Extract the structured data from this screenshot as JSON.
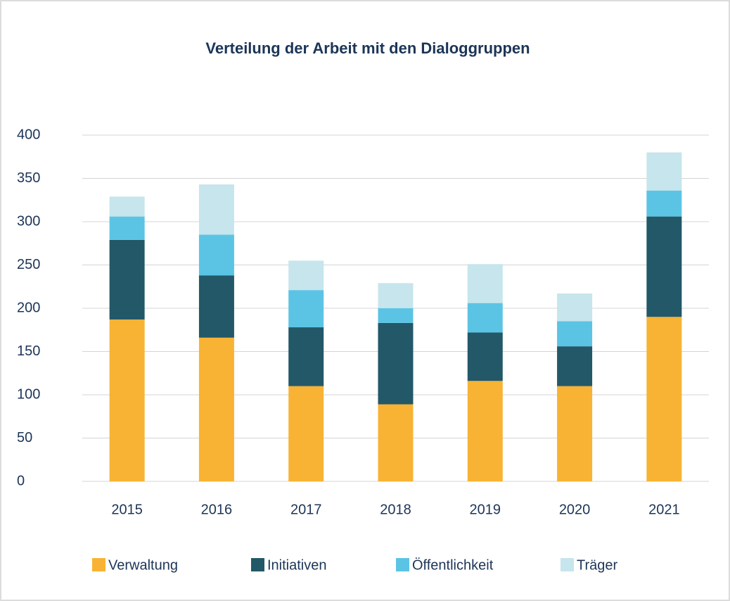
{
  "chart_data": {
    "type": "stacked_bar",
    "title": "Verteilung der Arbeit mit den Dialoggruppen",
    "categories": [
      "2015",
      "2016",
      "2017",
      "2018",
      "2019",
      "2020",
      "2021"
    ],
    "series": [
      {
        "name": "Verwaltung",
        "color": "#f8b334",
        "values": [
          187,
          166,
          110,
          89,
          116,
          110,
          190
        ]
      },
      {
        "name": "Initiativen",
        "color": "#225868",
        "values": [
          92,
          72,
          68,
          94,
          56,
          46,
          116
        ]
      },
      {
        "name": "Öffentlichkeit",
        "color": "#5bc4e5",
        "values": [
          27,
          47,
          43,
          17,
          34,
          29,
          30
        ]
      },
      {
        "name": "Träger",
        "color": "#c6e5ec",
        "values": [
          23,
          58,
          34,
          29,
          45,
          32,
          44
        ]
      }
    ],
    "ylim": [
      0,
      400
    ],
    "yticks": [
      0,
      50,
      100,
      150,
      200,
      250,
      300,
      350,
      400
    ],
    "grid": true,
    "legend": "bottom"
  }
}
